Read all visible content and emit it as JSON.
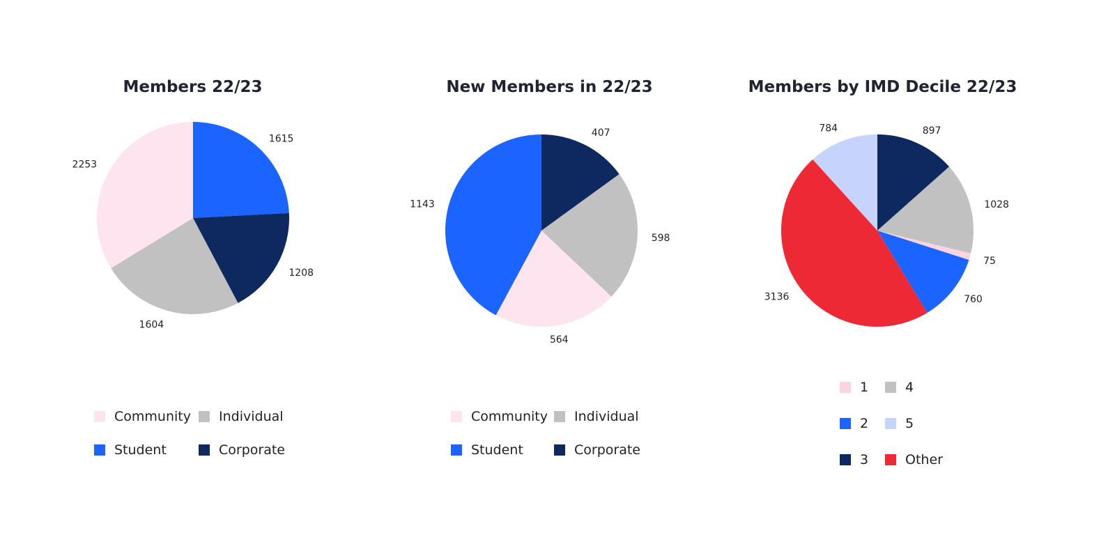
{
  "colors": {
    "community": "#fde4ef",
    "individual": "#c1c1c1",
    "student": "#1c64ff",
    "corporate": "#0e2960",
    "decile_1": "#fbd3e3",
    "decile_2": "#1c64ff",
    "decile_3": "#0e2960",
    "decile_4": "#c1c1c1",
    "decile_5": "#c6d3fb",
    "other": "#ec2935"
  },
  "chart_data": [
    {
      "type": "pie",
      "title": "Members 22/23",
      "slices": [
        {
          "name": "Student",
          "value": 1615,
          "color": "#1c64ff"
        },
        {
          "name": "Corporate",
          "value": 1208,
          "color": "#0e2960"
        },
        {
          "name": "Individual",
          "value": 1604,
          "color": "#c1c1c1"
        },
        {
          "name": "Community",
          "value": 2253,
          "color": "#fde4ef"
        }
      ],
      "legend": [
        {
          "label": "Community",
          "color": "#fde4ef"
        },
        {
          "label": "Individual",
          "color": "#c1c1c1"
        },
        {
          "label": "Student",
          "color": "#1c64ff"
        },
        {
          "label": "Corporate",
          "color": "#0e2960"
        }
      ]
    },
    {
      "type": "pie",
      "title": "New  Members in 22/23",
      "slices": [
        {
          "name": "Corporate",
          "value": 407,
          "color": "#0e2960"
        },
        {
          "name": "Individual",
          "value": 598,
          "color": "#c1c1c1"
        },
        {
          "name": "Community",
          "value": 564,
          "color": "#fde4ef"
        },
        {
          "name": "Student",
          "value": 1143,
          "color": "#1c64ff"
        }
      ],
      "legend": [
        {
          "label": "Community",
          "color": "#fde4ef"
        },
        {
          "label": "Individual",
          "color": "#c1c1c1"
        },
        {
          "label": "Student",
          "color": "#1c64ff"
        },
        {
          "label": "Corporate",
          "color": "#0e2960"
        }
      ]
    },
    {
      "type": "pie",
      "title": "Members by IMD Decile 22/23",
      "slices": [
        {
          "name": "3",
          "value": 897,
          "color": "#0e2960"
        },
        {
          "name": "4",
          "value": 1028,
          "color": "#c1c1c1"
        },
        {
          "name": "1",
          "value": 75,
          "color": "#fbd3e3"
        },
        {
          "name": "2",
          "value": 760,
          "color": "#1c64ff"
        },
        {
          "name": "Other",
          "value": 3136,
          "color": "#ec2935"
        },
        {
          "name": "5",
          "value": 784,
          "color": "#c6d3fb"
        }
      ],
      "legend": [
        {
          "label": "1",
          "color": "#fbd3e3"
        },
        {
          "label": "4",
          "color": "#c1c1c1"
        },
        {
          "label": "2",
          "color": "#1c64ff"
        },
        {
          "label": "5",
          "color": "#c6d3fb"
        },
        {
          "label": "3",
          "color": "#0e2960"
        },
        {
          "label": "Other",
          "color": "#ec2935"
        }
      ]
    }
  ]
}
